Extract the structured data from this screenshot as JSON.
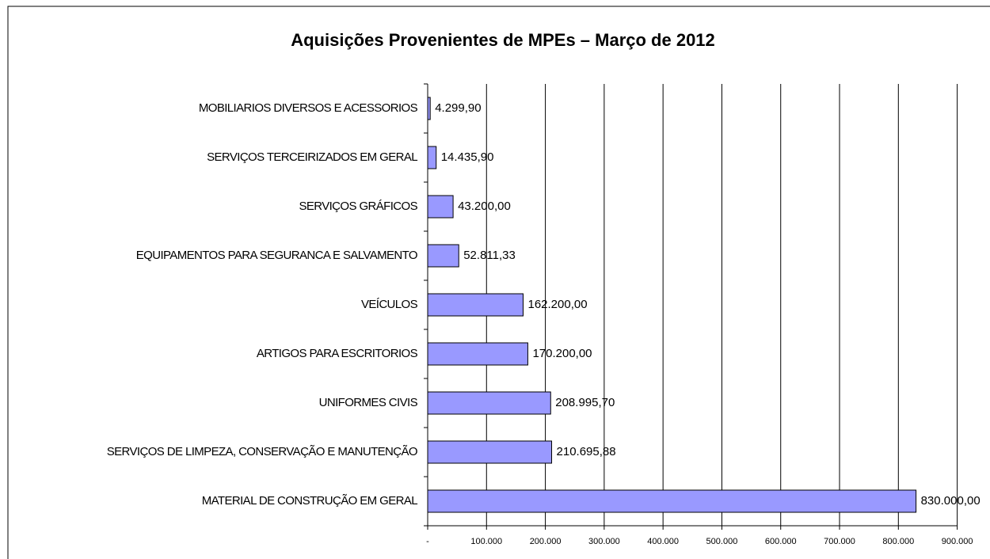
{
  "chart_data": {
    "type": "bar",
    "orientation": "horizontal",
    "title": "Aquisições Provenientes de MPEs – Março de 2012",
    "categories": [
      "MOBILIARIOS DIVERSOS E ACESSORIOS",
      "SERVIÇOS TERCEIRIZADOS EM GERAL",
      "SERVIÇOS GRÁFICOS",
      "EQUIPAMENTOS PARA SEGURANCA E SALVAMENTO",
      "VEÍCULOS",
      "ARTIGOS PARA ESCRITORIOS",
      "UNIFORMES CIVIS",
      "SERVIÇOS DE LIMPEZA, CONSERVAÇÃO E MANUTENÇÃO",
      "MATERIAL DE CONSTRUÇÃO EM GERAL"
    ],
    "values": [
      4299.9,
      14435.9,
      43200.0,
      52811.33,
      162200.0,
      170200.0,
      208995.7,
      210695.88,
      830000.0
    ],
    "value_labels": [
      "4.299,90",
      "14.435,90",
      "43.200,00",
      "52.811,33",
      "162.200,00",
      "170.200,00",
      "208.995,70",
      "210.695,88",
      "830.000,00"
    ],
    "color": "#9999ff",
    "xlim": [
      0,
      900000
    ],
    "xticks": [
      {
        "value": 0,
        "label": "-"
      },
      {
        "value": 100000,
        "label": "100.000"
      },
      {
        "value": 200000,
        "label": "200.000"
      },
      {
        "value": 300000,
        "label": "300.000"
      },
      {
        "value": 400000,
        "label": "400.000"
      },
      {
        "value": 500000,
        "label": "500.000"
      },
      {
        "value": 600000,
        "label": "600.000"
      },
      {
        "value": 700000,
        "label": "700.000"
      },
      {
        "value": 800000,
        "label": "800.000"
      },
      {
        "value": 900000,
        "label": "900.000"
      }
    ],
    "grid": true
  }
}
